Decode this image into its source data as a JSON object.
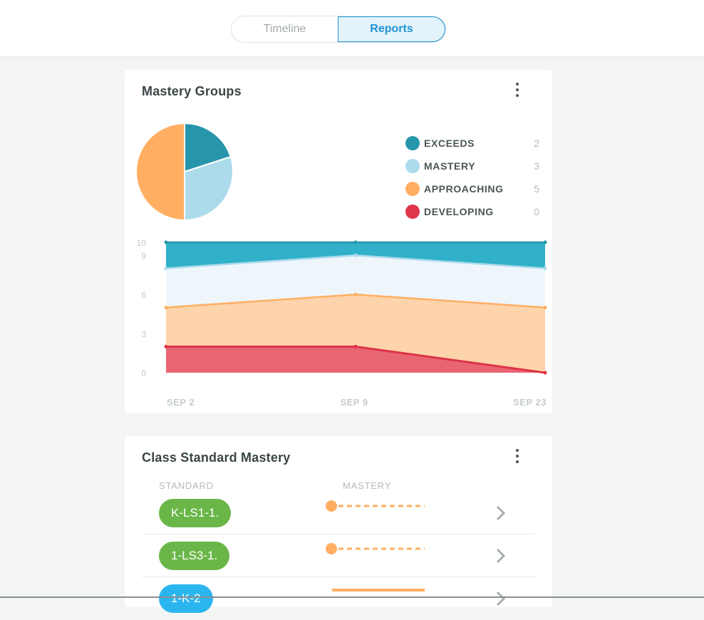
{
  "tabs": [
    {
      "label": "Timeline",
      "active": false
    },
    {
      "label": "Reports",
      "active": true
    }
  ],
  "mastery_groups": {
    "title": "Mastery Groups",
    "legend": [
      {
        "label": "EXCEEDS",
        "count": "2",
        "color": "#2796ac"
      },
      {
        "label": "MASTERY",
        "count": "3",
        "color": "#acdbec"
      },
      {
        "label": "APPROACHING",
        "count": "5",
        "color": "#ffae62"
      },
      {
        "label": "DEVELOPING",
        "count": "0",
        "color": "#e0344a"
      }
    ]
  },
  "chart_data": [
    {
      "type": "pie",
      "labels": [
        "EXCEEDS",
        "MASTERY",
        "APPROACHING",
        "DEVELOPING"
      ],
      "values": [
        2,
        3,
        5,
        0
      ],
      "colors": [
        "#2796ac",
        "#acdbec",
        "#ffae62",
        "#e0344a"
      ]
    },
    {
      "type": "area",
      "x": [
        "SEP 2",
        "SEP 9",
        "SEP 23"
      ],
      "ylim": [
        0,
        10
      ],
      "yticks": [
        "0",
        "3",
        "6",
        "9",
        "10"
      ],
      "series": [
        {
          "values": [
            10,
            10,
            10
          ],
          "fill": "#30b0c9",
          "line": "#2796ac"
        },
        {
          "values": [
            8,
            9,
            8
          ],
          "fill": "#eef6fc",
          "line": "#acdbec"
        },
        {
          "values": [
            5,
            6,
            5
          ],
          "fill": "#fdd4ab",
          "line": "#ffae62"
        },
        {
          "values": [
            2,
            2,
            0
          ],
          "fill": "#e86672",
          "line": "#dc3347"
        }
      ]
    }
  ],
  "class_mastery": {
    "title": "Class Standard Mastery",
    "col_standard": "STANDARD",
    "col_mastery": "MASTERY",
    "rows": [
      {
        "code": "K-LS1-1.",
        "pill_color": "#6ab648",
        "bar_color": "#ffae62",
        "style": "dashed"
      },
      {
        "code": "1-LS3-1.",
        "pill_color": "#6ab648",
        "bar_color": "#ffae62",
        "style": "dashed"
      },
      {
        "code": "1-K-2",
        "pill_color": "#2bb5ef",
        "bar_color": "#ffae62",
        "style": "solid"
      }
    ]
  }
}
